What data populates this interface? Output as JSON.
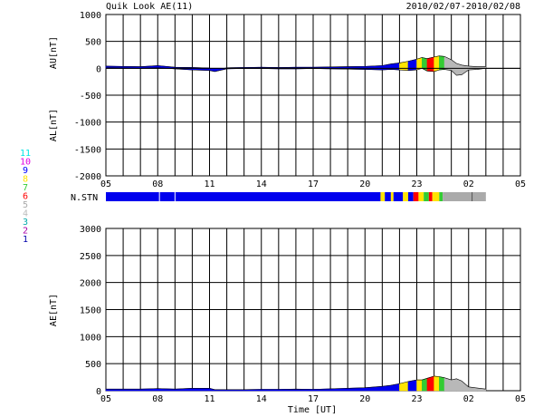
{
  "header": {
    "title": "Quik Look AE(11)",
    "date_range": "2010/02/07-2010/02/08"
  },
  "station_legend": [
    {
      "label": "11",
      "color": "#00e5e5"
    },
    {
      "label": "10",
      "color": "#e000e0"
    },
    {
      "label": "9",
      "color": "#0000ff"
    },
    {
      "label": "8",
      "color": "#ffe400"
    },
    {
      "label": "7",
      "color": "#33cc33"
    },
    {
      "label": "6",
      "color": "#ff0000"
    },
    {
      "label": "5",
      "color": "#aaaaaa"
    },
    {
      "label": "4",
      "color": "#bbbbbb"
    },
    {
      "label": "3",
      "color": "#00aaaa"
    },
    {
      "label": "2",
      "color": "#aa00aa"
    },
    {
      "label": "1",
      "color": "#0000aa"
    }
  ],
  "nstn_label": "N.STN",
  "x_axis_label": "Time [UT]",
  "chart_data": [
    {
      "type": "area",
      "name": "AU/AL",
      "xlabel": "",
      "ylabels": [
        "AU[nT]",
        "AL[nT]"
      ],
      "ylim": [
        -2000,
        1000
      ],
      "yticks": [
        1000,
        500,
        0,
        -500,
        -1000,
        -1500,
        -2000
      ],
      "xlim": [
        5,
        29
      ],
      "xticks": [
        "05",
        "08",
        "11",
        "14",
        "17",
        "20",
        "23",
        "02",
        "05"
      ],
      "grid": true,
      "x": [
        5,
        6,
        7,
        8,
        8.5,
        9,
        10,
        11,
        11.3,
        12,
        13,
        14,
        15,
        16,
        17,
        18,
        19,
        20,
        21,
        21.5,
        22,
        22.5,
        23,
        23.3,
        23.6,
        24,
        24.3,
        24.6,
        25,
        25.3,
        25.6,
        26,
        26.5,
        27
      ],
      "au": [
        40,
        35,
        30,
        50,
        35,
        20,
        15,
        5,
        -40,
        10,
        15,
        20,
        15,
        20,
        20,
        25,
        30,
        35,
        50,
        80,
        100,
        130,
        170,
        200,
        180,
        210,
        230,
        220,
        160,
        90,
        60,
        40,
        30,
        30
      ],
      "al": [
        10,
        5,
        0,
        10,
        0,
        -10,
        -30,
        -40,
        -60,
        -10,
        -5,
        -5,
        -10,
        -10,
        -5,
        -10,
        -15,
        -20,
        -30,
        -20,
        -30,
        -40,
        -30,
        0,
        -50,
        -60,
        -30,
        -20,
        -40,
        -130,
        -120,
        -30,
        -20,
        0
      ]
    },
    {
      "type": "area",
      "name": "AE",
      "xlabel": "Time [UT]",
      "ylabel": "AE[nT]",
      "ylim": [
        0,
        3000
      ],
      "yticks": [
        3000,
        2500,
        2000,
        1500,
        1000,
        500,
        0
      ],
      "xlim": [
        5,
        29
      ],
      "xticks": [
        "05",
        "08",
        "11",
        "14",
        "17",
        "20",
        "23",
        "02",
        "05"
      ],
      "grid": true,
      "x": [
        5,
        6,
        7,
        8,
        8.5,
        9,
        10,
        11,
        11.3,
        12,
        13,
        14,
        15,
        16,
        17,
        18,
        19,
        20,
        21,
        21.5,
        22,
        22.5,
        23,
        23.3,
        23.6,
        24,
        24.3,
        24.6,
        25,
        25.3,
        25.6,
        26,
        26.5,
        27
      ],
      "ae": [
        30,
        30,
        30,
        40,
        35,
        30,
        45,
        45,
        20,
        20,
        20,
        25,
        25,
        30,
        25,
        35,
        45,
        55,
        80,
        100,
        130,
        170,
        200,
        200,
        230,
        270,
        260,
        240,
        200,
        220,
        180,
        70,
        50,
        30
      ]
    }
  ],
  "nstn_segments": [
    {
      "from": 5,
      "to": 20.9,
      "color": "#0000ee"
    },
    {
      "from": 20.9,
      "to": 21.15,
      "color": "#ffe400"
    },
    {
      "from": 21.15,
      "to": 21.5,
      "color": "#0000ee"
    },
    {
      "from": 21.5,
      "to": 21.65,
      "color": "#ffe400"
    },
    {
      "from": 21.65,
      "to": 22.2,
      "color": "#0000ee"
    },
    {
      "from": 22.2,
      "to": 22.5,
      "color": "#ffe400"
    },
    {
      "from": 22.5,
      "to": 22.8,
      "color": "#0000ee"
    },
    {
      "from": 22.8,
      "to": 23.1,
      "color": "#ff0000"
    },
    {
      "from": 23.1,
      "to": 23.4,
      "color": "#ffe400"
    },
    {
      "from": 23.4,
      "to": 23.7,
      "color": "#33cc33"
    },
    {
      "from": 23.7,
      "to": 23.9,
      "color": "#ff0000"
    },
    {
      "from": 23.9,
      "to": 24.3,
      "color": "#ffe400"
    },
    {
      "from": 24.3,
      "to": 24.5,
      "color": "#33cc33"
    },
    {
      "from": 24.5,
      "to": 27.0,
      "color": "#aaaaaa"
    }
  ],
  "colors": {
    "series_blue": "#0000ee",
    "late_gray": "#b8b8b8",
    "grid": "#000000"
  }
}
